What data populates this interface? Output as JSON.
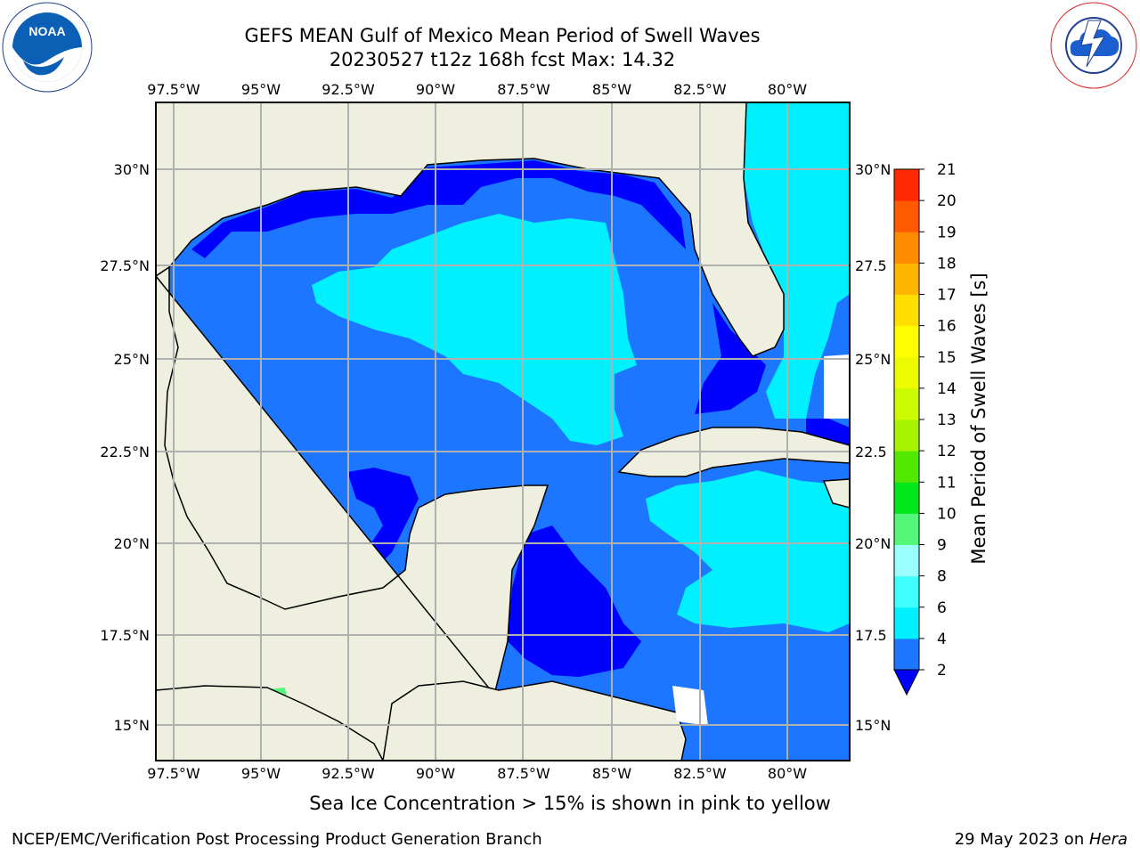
{
  "header": {
    "title_line1": "GEFS MEAN Gulf of Mexico Mean Period of Swell Waves",
    "title_line2": "20230527 t12z 168h fcst   Max: 14.32"
  },
  "logos": {
    "left": "noaa-logo",
    "right": "nws-logo",
    "right_text": "NATIONAL WEATHER SERVICE",
    "left_text": "NATIONAL OCEANIC AND ATMOSPHERIC ADMINISTRATION · U.S. DEPARTMENT OF COMMERCE"
  },
  "map": {
    "lon_ticks": [
      "97.5°W",
      "95°W",
      "92.5°W",
      "90°W",
      "87.5°W",
      "85°W",
      "82.5°W",
      "80°W"
    ],
    "lat_ticks_left": [
      "30°N",
      "27.5°N",
      "25°N",
      "22.5°N",
      "20°N",
      "17.5°N",
      "15°N"
    ],
    "lat_ticks_right": [
      "30°N",
      "27.5",
      "25°N",
      "22.5",
      "20°N",
      "17.5",
      "15°N"
    ],
    "extent": {
      "lon_min": -98,
      "lon_max": -78.5,
      "lat_min": 14,
      "lat_max": 31.7
    },
    "land_color": "#efefdf",
    "grid_color": "#b0b0b0"
  },
  "colorbar": {
    "label": "Mean Period of Swell Waves [s]",
    "ticks": [
      "2",
      "4",
      "6",
      "8",
      "9",
      "10",
      "11",
      "12",
      "13",
      "14",
      "15",
      "16",
      "17",
      "18",
      "19",
      "20",
      "21"
    ],
    "colors": [
      "#1c76ff",
      "#00f0ff",
      "#40ffff",
      "#9cffff",
      "#55f77a",
      "#00e81a",
      "#52e800",
      "#a6f200",
      "#ccfa00",
      "#eefa00",
      "#ffff00",
      "#ffde00",
      "#ffb600",
      "#ff8c00",
      "#ff5a00",
      "#ff2a00"
    ],
    "under_color": "#0000ff"
  },
  "footer": {
    "ice_note": "Sea Ice Concentration > 15% is shown in pink to yellow",
    "credit": "NCEP/EMC/Verification Post Processing Product Generation Branch",
    "date": "29 May 2023 on ",
    "host": "Hera"
  }
}
